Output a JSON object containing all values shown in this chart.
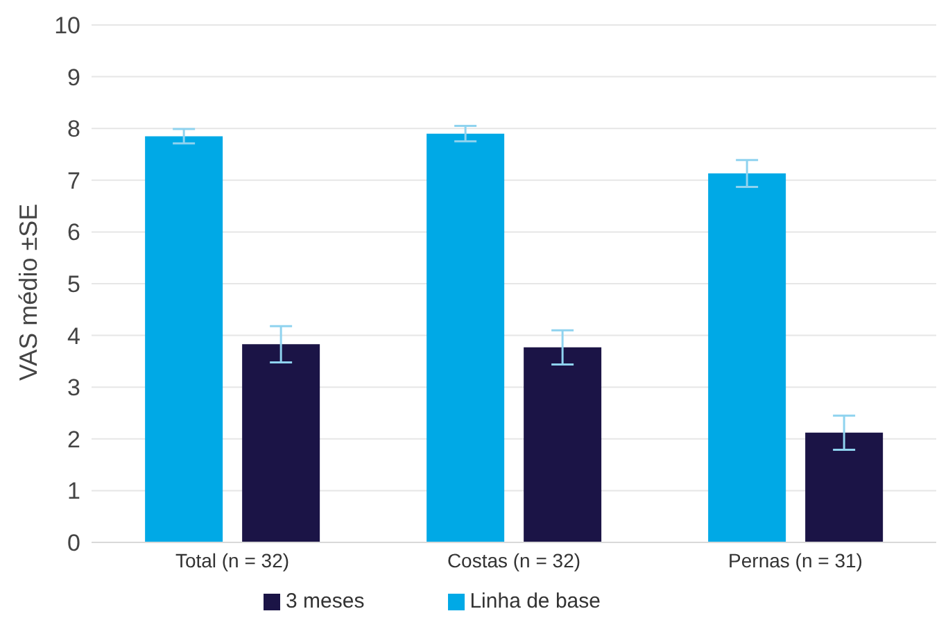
{
  "chart_data": {
    "type": "bar",
    "ylabel": "VAS médio ±SE",
    "categories": [
      "Total (n = 32)",
      "Costas (n = 32)",
      "Pernas (n = 31)"
    ],
    "series": [
      {
        "name": "Linha de base",
        "color": "#00a9e6",
        "values": [
          7.85,
          7.9,
          7.13
        ],
        "errors": [
          0.14,
          0.15,
          0.26
        ]
      },
      {
        "name": "3 meses",
        "color": "#1b1446",
        "values": [
          3.83,
          3.77,
          2.12
        ],
        "errors": [
          0.35,
          0.33,
          0.33
        ]
      }
    ],
    "ylim": [
      0,
      10
    ],
    "yticks": [
      0,
      1,
      2,
      3,
      4,
      5,
      6,
      7,
      8,
      9,
      10
    ],
    "grid": "y",
    "legend": "bottom"
  }
}
